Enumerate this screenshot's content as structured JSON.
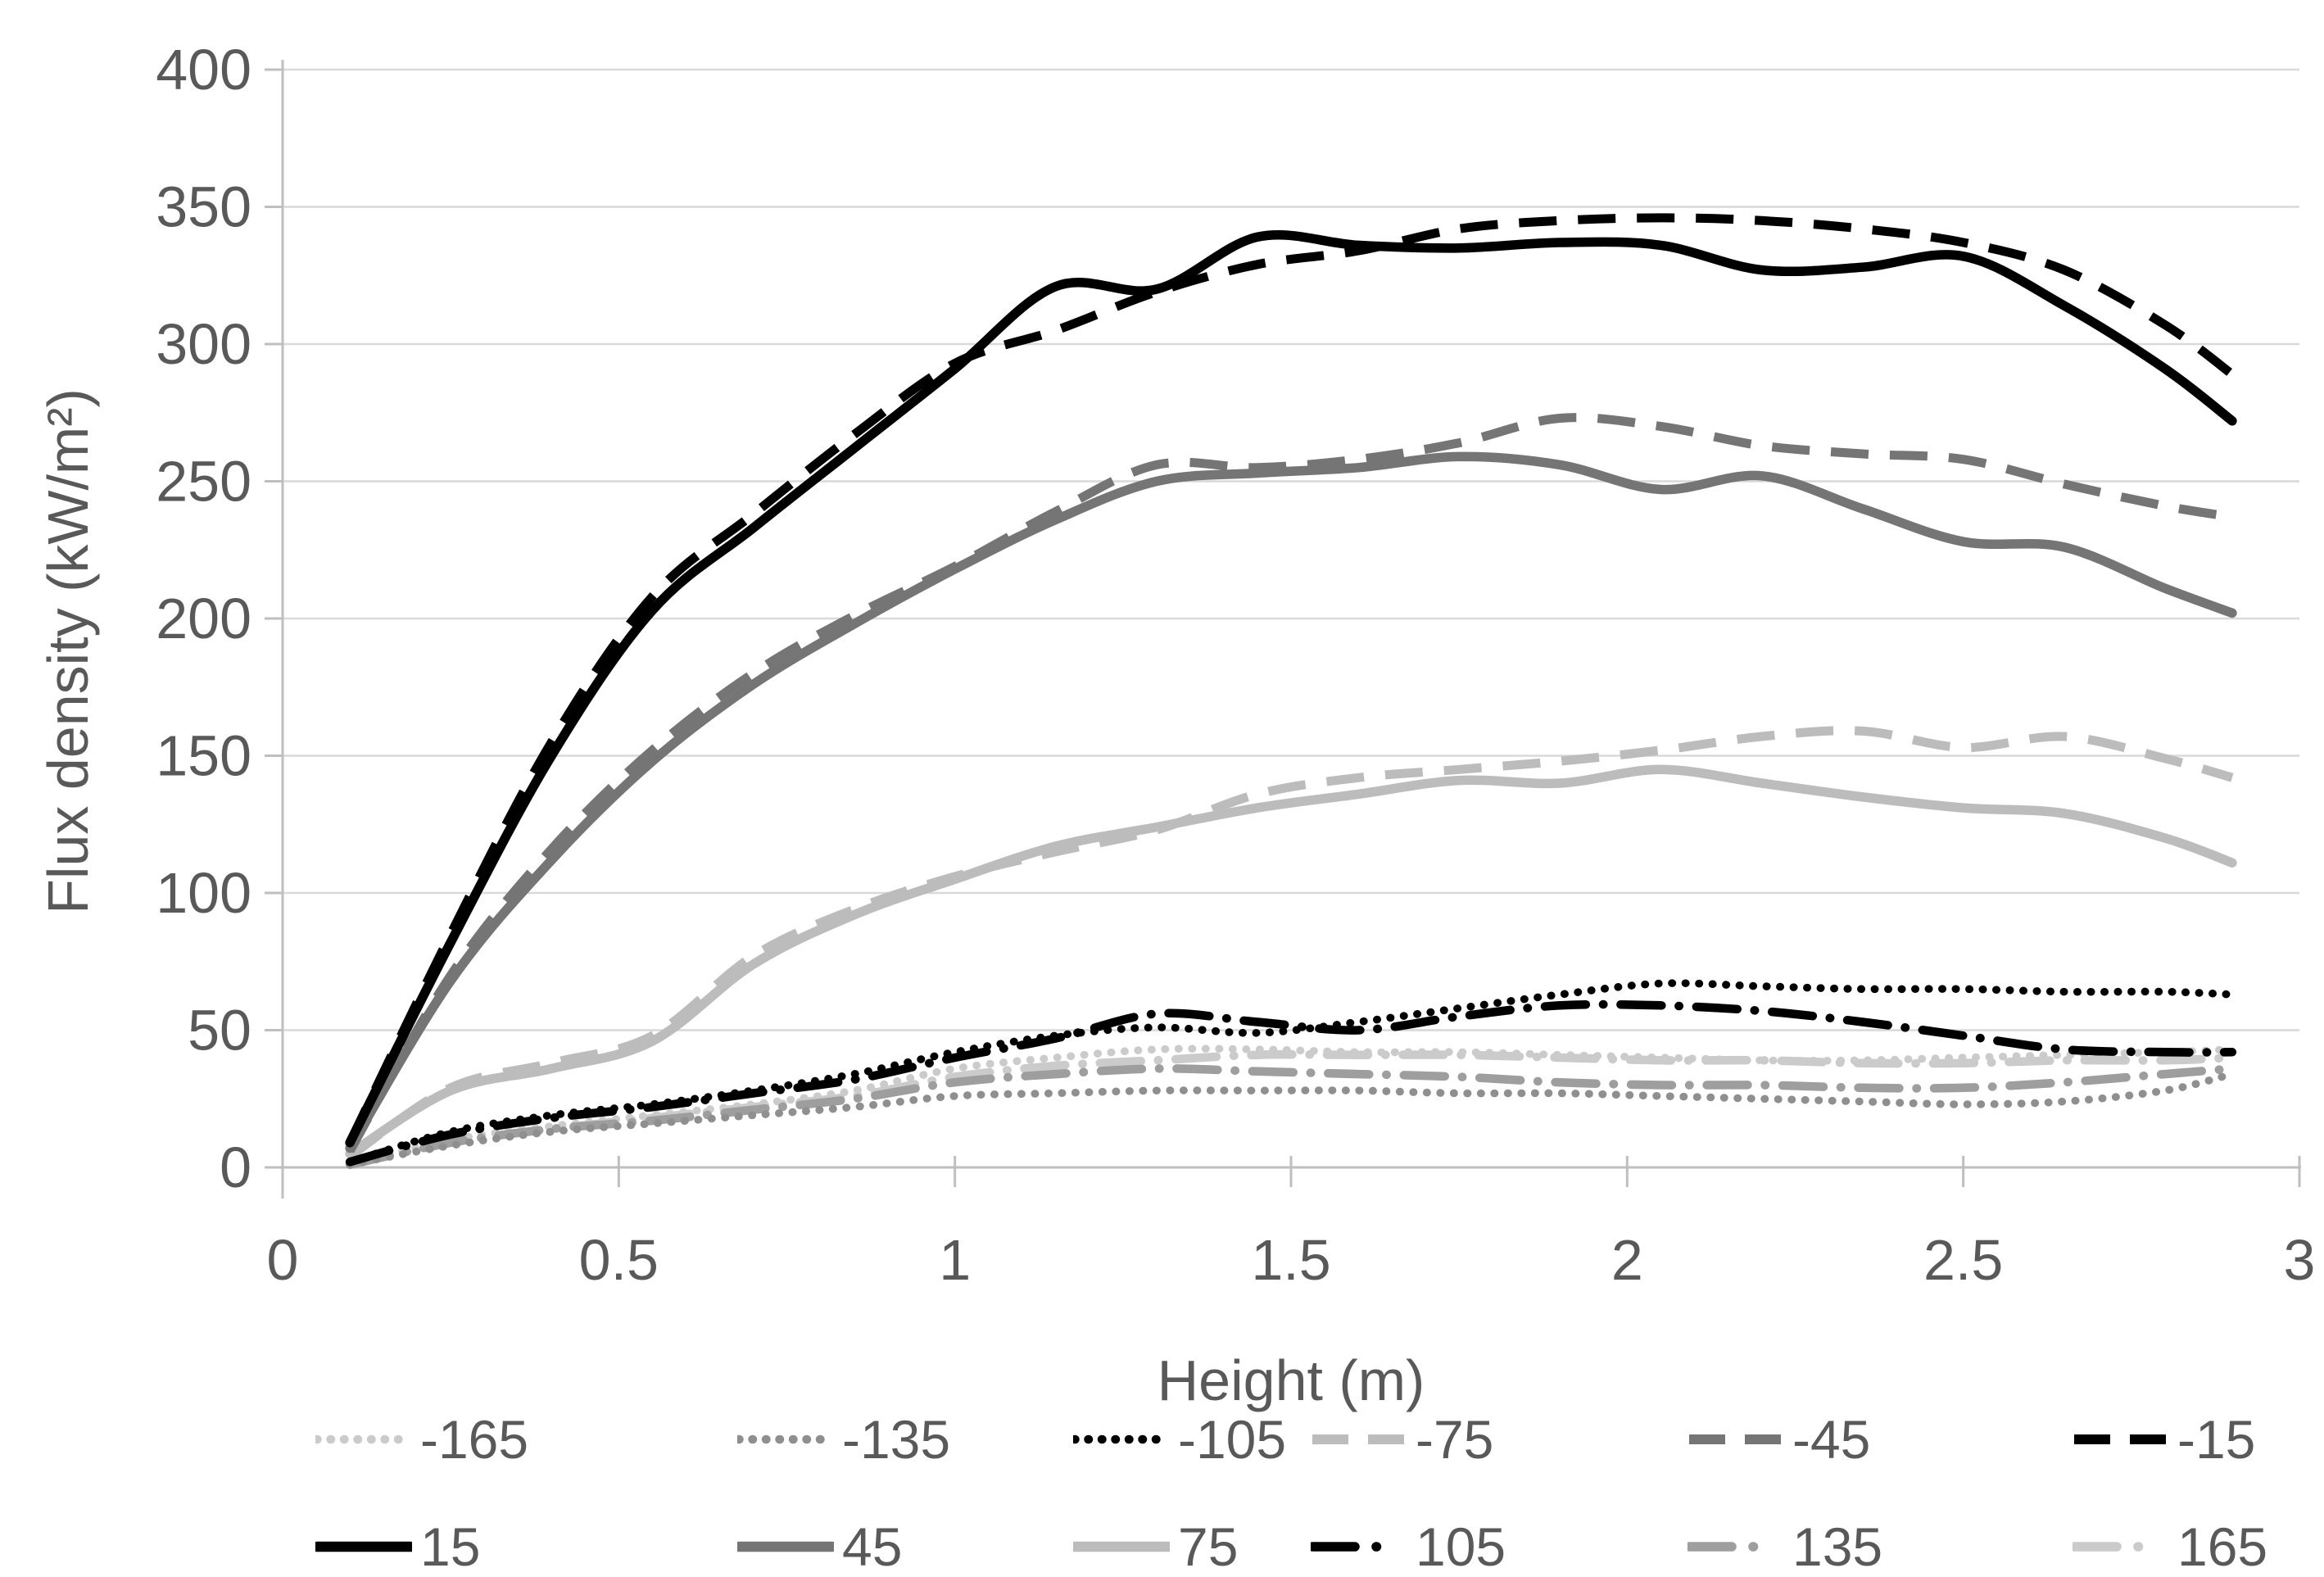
{
  "chart_data": {
    "type": "line",
    "title": "",
    "xlabel": "Height (m)",
    "ylabel": "Flux density (kW/m²)",
    "xlim": [
      0,
      3
    ],
    "ylim": [
      0,
      400
    ],
    "x_ticks": [
      "0",
      "0.5",
      "1",
      "1.5",
      "2",
      "2.5",
      "3"
    ],
    "x_tick_values": [
      0,
      0.5,
      1,
      1.5,
      2,
      2.5,
      3
    ],
    "y_ticks": [
      "0",
      "50",
      "100",
      "150",
      "200",
      "250",
      "300",
      "350",
      "400"
    ],
    "y_tick_values": [
      0,
      50,
      100,
      150,
      200,
      250,
      300,
      350,
      400
    ],
    "grid": true,
    "legend_position": "bottom",
    "colors": {
      "black": "#000000",
      "dark_gray": "#757575",
      "mid_gray_dotted": "#8f8f8f",
      "mid_gray_dashdot": "#9e9e9e",
      "light_gray": "#bcbcbc",
      "lighter_gray": "#cbcbcb",
      "axis": "#bfbfbf",
      "grid": "#d9d9d9",
      "text": "#595959"
    },
    "x": [
      0.1,
      0.25,
      0.4,
      0.55,
      0.7,
      0.85,
      1.0,
      1.15,
      1.3,
      1.45,
      1.6,
      1.75,
      1.9,
      2.05,
      2.2,
      2.35,
      2.5,
      2.65,
      2.8,
      2.9
    ],
    "series": [
      {
        "name": "-165",
        "color": "#cbcbcb",
        "style": "dotted",
        "values": [
          1,
          10,
          15,
          19,
          23,
          28,
          36,
          40,
          43,
          43,
          42,
          42,
          41,
          40,
          39,
          39,
          40,
          41,
          42,
          43
        ]
      },
      {
        "name": "-135",
        "color": "#8f8f8f",
        "style": "dotted",
        "values": [
          1,
          8,
          13,
          16,
          19,
          22,
          26,
          27,
          28,
          28,
          28,
          27,
          27,
          26,
          25,
          24,
          23,
          24,
          28,
          34
        ]
      },
      {
        "name": "-105",
        "color": "#000000",
        "style": "dotted",
        "values": [
          2,
          13,
          19,
          23,
          28,
          34,
          42,
          48,
          51,
          49,
          53,
          58,
          63,
          67,
          66,
          65,
          65,
          64,
          64,
          63
        ]
      },
      {
        "name": "-75",
        "color": "#bcbcbc",
        "style": "dashed",
        "values": [
          4,
          29,
          38,
          48,
          77,
          94,
          106,
          115,
          123,
          136,
          142,
          145,
          148,
          152,
          157,
          159,
          153,
          157,
          149,
          142
        ]
      },
      {
        "name": "-45",
        "color": "#757575",
        "style": "dashed",
        "values": [
          6,
          70,
          116,
          152,
          180,
          201,
          219,
          239,
          256,
          255,
          258,
          264,
          273,
          270,
          263,
          260,
          258,
          249,
          241,
          237
        ]
      },
      {
        "name": "-15",
        "color": "#000000",
        "style": "dashed",
        "values": [
          9,
          85,
          155,
          208,
          238,
          267,
          293,
          305,
          319,
          329,
          334,
          342,
          345,
          346,
          345,
          342,
          337,
          327,
          307,
          289
        ]
      },
      {
        "name": "15",
        "color": "#000000",
        "style": "solid",
        "values": [
          9,
          82,
          150,
          203,
          233,
          262,
          291,
          321,
          320,
          339,
          336,
          335,
          337,
          336,
          327,
          328,
          332,
          314,
          291,
          272
        ]
      },
      {
        "name": "45",
        "color": "#757575",
        "style": "solid",
        "values": [
          7,
          68,
          112,
          148,
          176,
          198,
          218,
          236,
          250,
          253,
          255,
          259,
          256,
          247,
          252,
          240,
          228,
          226,
          211,
          202
        ]
      },
      {
        "name": "75",
        "color": "#bcbcbc",
        "style": "solid",
        "values": [
          5,
          28,
          36,
          46,
          74,
          92,
          105,
          117,
          124,
          131,
          136,
          141,
          140,
          145,
          140,
          135,
          131,
          129,
          120,
          111
        ]
      },
      {
        "name": "105",
        "color": "#000000",
        "style": "dashdot",
        "values": [
          2,
          12,
          18,
          22,
          27,
          32,
          40,
          47,
          56,
          53,
          50,
          55,
          59,
          59,
          57,
          53,
          48,
          43,
          42,
          42
        ]
      },
      {
        "name": "135",
        "color": "#9e9e9e",
        "style": "dashdot",
        "values": [
          1,
          9,
          14,
          17,
          21,
          25,
          31,
          34,
          36,
          35,
          34,
          33,
          31,
          30,
          30,
          29,
          29,
          31,
          34,
          36
        ]
      },
      {
        "name": "165",
        "color": "#cbcbcb",
        "style": "dashdot",
        "values": [
          1,
          9,
          14,
          18,
          22,
          26,
          33,
          37,
          39,
          41,
          41,
          41,
          40,
          39,
          39,
          38,
          38,
          39,
          39,
          40
        ]
      }
    ],
    "legend_rows": [
      [
        "-165",
        "-135",
        "-105",
        "-75",
        "-45",
        "-15"
      ],
      [
        "15",
        "45",
        "75",
        "105",
        "135",
        "165"
      ]
    ]
  }
}
